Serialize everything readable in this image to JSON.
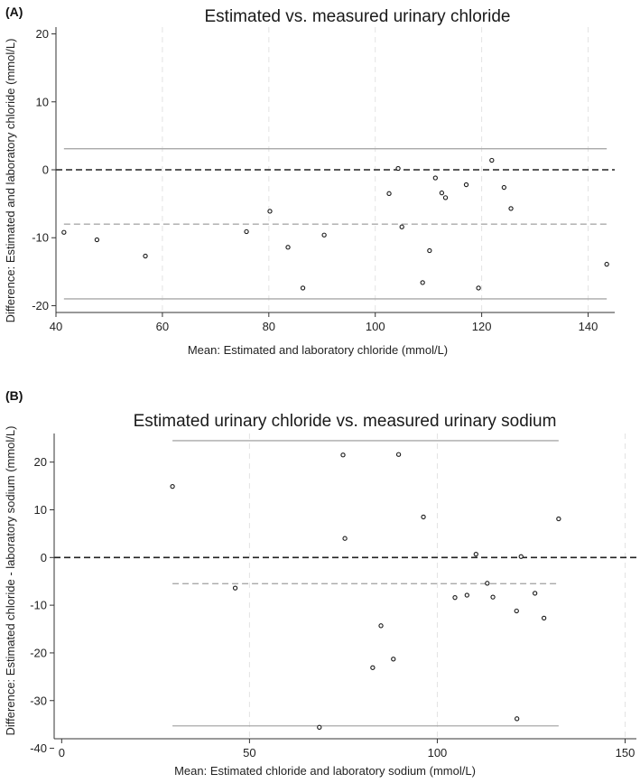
{
  "chart_data": [
    {
      "type": "scatter",
      "panel_label": "(A)",
      "title": "Estimated vs. measured urinary chloride",
      "xlabel": "Mean: Estimated and laboratory chloride (mmol/L)",
      "ylabel": "Difference: Estimated and laboratory chloride (mmol/L)",
      "xlim": [
        40,
        145
      ],
      "ylim": [
        -21,
        21
      ],
      "xticks": [
        "40",
        "60",
        "80",
        "100",
        "120",
        "140"
      ],
      "yticks": [
        "-20",
        "-10",
        "0",
        "10",
        "20"
      ],
      "xtick_values": [
        40,
        60,
        80,
        100,
        120,
        140
      ],
      "ytick_values": [
        -20,
        -10,
        0,
        10,
        20
      ],
      "vgrid": [
        40,
        60,
        80,
        100,
        120,
        140
      ],
      "zero_line": 0,
      "mean_line": -8.0,
      "loa_upper": 3.1,
      "loa_lower": -19.0,
      "line_x_range": [
        41.5,
        143.5
      ],
      "points": [
        {
          "x": 41.5,
          "y": -9.2
        },
        {
          "x": 47.7,
          "y": -10.3
        },
        {
          "x": 56.8,
          "y": -12.7
        },
        {
          "x": 75.8,
          "y": -9.1
        },
        {
          "x": 80.2,
          "y": -6.1
        },
        {
          "x": 83.6,
          "y": -11.4
        },
        {
          "x": 86.4,
          "y": -17.4
        },
        {
          "x": 90.4,
          "y": -9.6
        },
        {
          "x": 102.6,
          "y": -3.5
        },
        {
          "x": 104.3,
          "y": 0.2
        },
        {
          "x": 105.0,
          "y": -8.4
        },
        {
          "x": 108.9,
          "y": -16.6
        },
        {
          "x": 110.2,
          "y": -11.9
        },
        {
          "x": 111.3,
          "y": -1.2
        },
        {
          "x": 112.5,
          "y": -3.4
        },
        {
          "x": 113.2,
          "y": -4.1
        },
        {
          "x": 117.1,
          "y": -2.2
        },
        {
          "x": 119.4,
          "y": -17.4
        },
        {
          "x": 121.9,
          "y": 1.4
        },
        {
          "x": 124.2,
          "y": -2.6
        },
        {
          "x": 125.5,
          "y": -5.7
        },
        {
          "x": 143.5,
          "y": -13.9
        }
      ]
    },
    {
      "type": "scatter",
      "panel_label": "(B)",
      "title": "Estimated urinary chloride vs. measured urinary sodium",
      "xlabel": "Mean: Estimated chloride and laboratory sodium (mmol/L)",
      "ylabel": "Difference: Estimated chloride - laboratory sodium (mmol/L)",
      "xlim": [
        -2,
        153
      ],
      "ylim": [
        -38,
        26
      ],
      "xticks": [
        "0",
        "50",
        "100",
        "150"
      ],
      "yticks": [
        "-40",
        "-30",
        "-20",
        "-10",
        "0",
        "10",
        "20"
      ],
      "xtick_values": [
        0,
        50,
        100,
        150
      ],
      "ytick_values": [
        -40,
        -30,
        -20,
        -10,
        0,
        10,
        20
      ],
      "vgrid": [
        50,
        100,
        150
      ],
      "zero_line": 0,
      "mean_line": -5.5,
      "loa_upper": 24.5,
      "loa_lower": -35.3,
      "line_x_range": [
        29.5,
        132.3
      ],
      "points": [
        {
          "x": 29.5,
          "y": 14.9
        },
        {
          "x": 46.2,
          "y": -6.4
        },
        {
          "x": 68.6,
          "y": -35.6
        },
        {
          "x": 74.9,
          "y": 21.5
        },
        {
          "x": 75.4,
          "y": 4.0
        },
        {
          "x": 82.8,
          "y": -23.1
        },
        {
          "x": 85.0,
          "y": -14.3
        },
        {
          "x": 88.3,
          "y": -21.3
        },
        {
          "x": 89.7,
          "y": 21.6
        },
        {
          "x": 96.3,
          "y": 8.5
        },
        {
          "x": 104.7,
          "y": -8.4
        },
        {
          "x": 107.9,
          "y": -7.9
        },
        {
          "x": 110.3,
          "y": 0.7
        },
        {
          "x": 113.3,
          "y": -5.4
        },
        {
          "x": 114.8,
          "y": -8.3
        },
        {
          "x": 121.1,
          "y": -11.2
        },
        {
          "x": 121.2,
          "y": -33.8
        },
        {
          "x": 122.3,
          "y": 0.2
        },
        {
          "x": 126.0,
          "y": -7.5
        },
        {
          "x": 128.4,
          "y": -12.7
        },
        {
          "x": 132.3,
          "y": 8.1
        }
      ]
    }
  ]
}
